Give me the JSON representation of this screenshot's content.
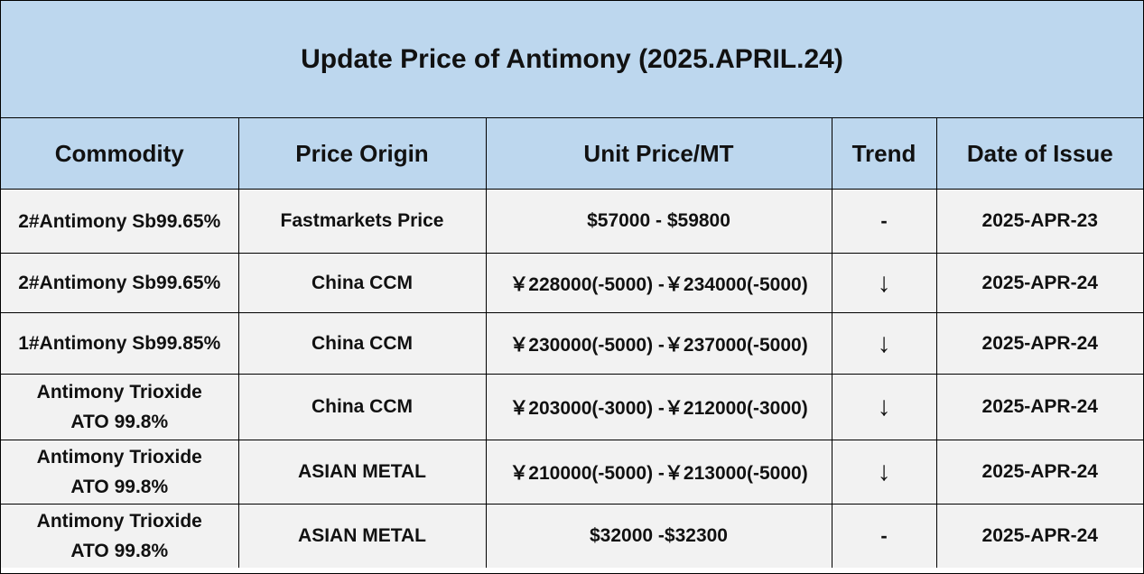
{
  "title": "Update Price of Antimony (2025.APRIL.24)",
  "headers": {
    "commodity": "Commodity",
    "origin": "Price Origin",
    "price": "Unit Price/MT",
    "trend": "Trend",
    "date": "Date of Issue"
  },
  "rows": [
    {
      "commodity_line1": "2#Antimony  Sb99.65%",
      "commodity_line2": "",
      "origin": "Fastmarkets Price",
      "price": "$57000  - $59800",
      "trend": "-",
      "date": "2025-APR-23"
    },
    {
      "commodity_line1": "2#Antimony  Sb99.65%",
      "commodity_line2": "",
      "origin": "China CCM",
      "price": "￥228000(-5000) -￥234000(-5000)",
      "trend": "↓",
      "date": "2025-APR-24"
    },
    {
      "commodity_line1": "1#Antimony  Sb99.85%",
      "commodity_line2": "",
      "origin": "China CCM",
      "price": "￥230000(-5000)  -￥237000(-5000)",
      "trend": "↓",
      "date": "2025-APR-24"
    },
    {
      "commodity_line1": "Antimony Trioxide",
      "commodity_line2": "ATO 99.8%",
      "origin": "China CCM",
      "price": "￥203000(-3000)  -￥212000(-3000)",
      "trend": "↓",
      "date": "2025-APR-24"
    },
    {
      "commodity_line1": "Antimony Trioxide",
      "commodity_line2": "ATO 99.8%",
      "origin": "ASIAN METAL",
      "price": "￥210000(-5000) -￥213000(-5000)",
      "trend": "↓",
      "date": "2025-APR-24"
    },
    {
      "commodity_line1": "Antimony Trioxide",
      "commodity_line2": "ATO 99.8%",
      "origin": "ASIAN METAL",
      "price": "$32000 -$32300",
      "trend": "-",
      "date": "2025-APR-24"
    }
  ]
}
